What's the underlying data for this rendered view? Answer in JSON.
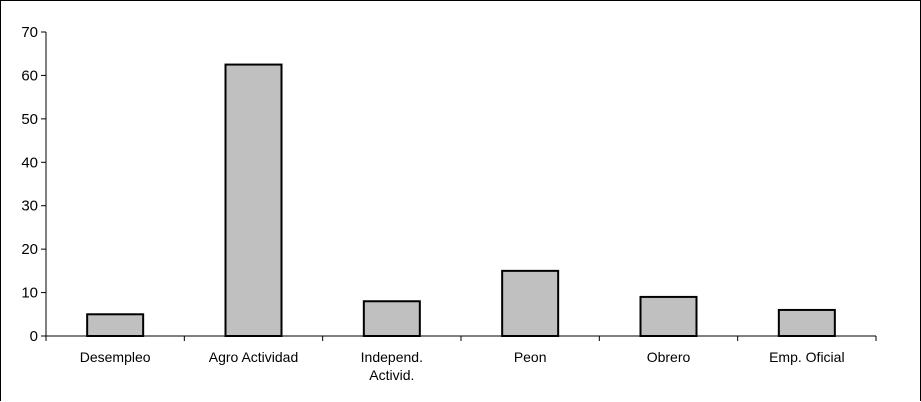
{
  "chart_data": {
    "type": "bar",
    "categories": [
      "Desempleo",
      "Agro Actividad",
      "Independ. Activid.",
      "Peon",
      "Obrero",
      "Emp. Oficial"
    ],
    "category_lines": [
      [
        "Desempleo"
      ],
      [
        "Agro Actividad"
      ],
      [
        "Independ.",
        "Activid."
      ],
      [
        "Peon"
      ],
      [
        "Obrero"
      ],
      [
        "Emp. Oficial"
      ]
    ],
    "values": [
      5,
      62.5,
      8,
      15,
      9,
      6
    ],
    "title": "",
    "xlabel": "",
    "ylabel": "",
    "ylim": [
      0,
      70
    ],
    "yticks": [
      0,
      10,
      20,
      30,
      40,
      50,
      60,
      70
    ],
    "grid": false,
    "legend": "none",
    "bar_color": "#c0c0c0",
    "edge_color": "#000000"
  }
}
